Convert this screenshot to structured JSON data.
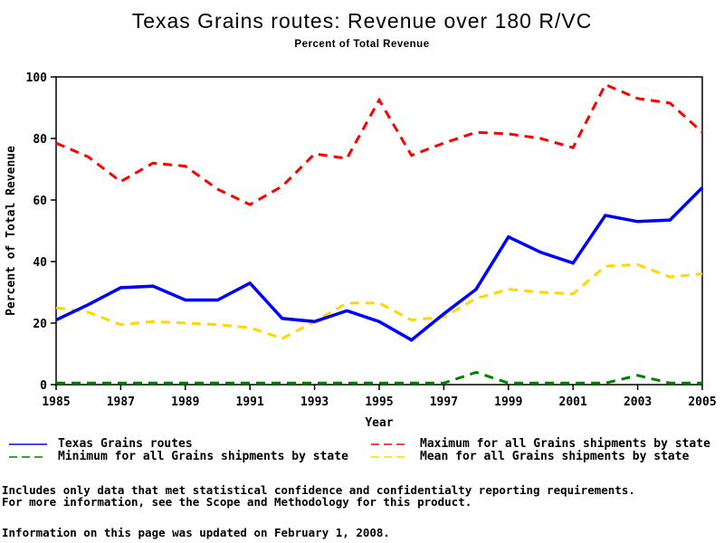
{
  "page": {
    "title": "Texas Grains routes: Revenue over 180 R/VC",
    "subtitle": "Percent of Total Revenue"
  },
  "chart_data": {
    "type": "line",
    "title": "Texas Grains routes: Revenue over 180 R/VC",
    "subtitle": "Percent of Total Revenue",
    "xlabel": "Year",
    "ylabel": "Percent of Total Revenue",
    "x": [
      1985,
      1986,
      1987,
      1988,
      1989,
      1990,
      1991,
      1992,
      1993,
      1994,
      1995,
      1996,
      1997,
      1998,
      1999,
      2000,
      2001,
      2002,
      2003,
      2004,
      2005
    ],
    "xlim": [
      1985,
      2005
    ],
    "ylim": [
      0,
      100
    ],
    "xticks": [
      1985,
      1987,
      1989,
      1991,
      1993,
      1995,
      1997,
      1999,
      2001,
      2003,
      2005
    ],
    "yticks": [
      0,
      20,
      40,
      60,
      80,
      100
    ],
    "grid": false,
    "legend_position": "bottom",
    "series": [
      {
        "name": "Texas Grains routes",
        "color": "#0000ff",
        "style": "solid",
        "values": [
          21,
          26,
          31.5,
          32,
          27.5,
          27.5,
          33,
          21.5,
          20.5,
          24,
          20.5,
          14.5,
          23,
          31,
          48,
          43,
          39.5,
          55,
          53,
          53.5,
          64
        ]
      },
      {
        "name": "Maximum for all Grains shipments by state",
        "color": "#ff0000",
        "style": "dashed",
        "values": [
          78.5,
          74,
          66,
          72,
          71,
          63.5,
          58.5,
          64.5,
          75,
          73.5,
          92.5,
          74.5,
          78.5,
          82,
          81.5,
          80,
          77,
          97.5,
          93,
          91.5,
          82
        ]
      },
      {
        "name": "Minimum for all Grains shipments by state",
        "color": "#008000",
        "style": "dashed",
        "values": [
          0.5,
          0.5,
          0.5,
          0.5,
          0.5,
          0.5,
          0.5,
          0.5,
          0.5,
          0.5,
          0.5,
          0.5,
          0.5,
          4,
          0.5,
          0.5,
          0.5,
          0.5,
          3,
          0.5,
          0.5
        ]
      },
      {
        "name": "Mean for all Grains shipments by state",
        "color": "#ffd700",
        "style": "dashed",
        "values": [
          25,
          23.5,
          19.5,
          20.5,
          20,
          19.5,
          18.5,
          15,
          20.5,
          26.5,
          26.5,
          21,
          22,
          28,
          31,
          30,
          29.5,
          38.5,
          39,
          35,
          36
        ]
      }
    ]
  },
  "footer": {
    "note_line1": "Includes only data that met statistical confidence and confidentialty reporting requirements.",
    "note_line2": "For more information, see the Scope and Methodology for this product.",
    "updated_line": "Information on this page was updated on February 1, 2008."
  }
}
